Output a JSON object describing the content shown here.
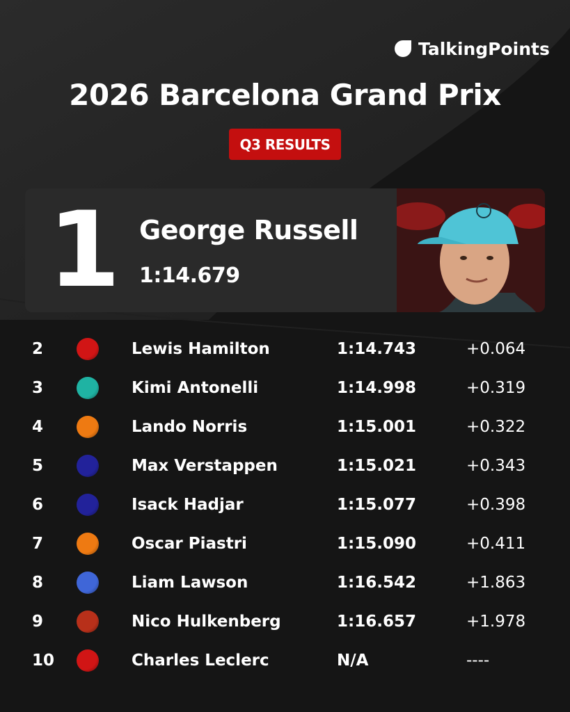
{
  "brand": "TalkingPoints",
  "title": "2026 Barcelona Grand Prix",
  "badge": "Q3 RESULTS",
  "winner": {
    "position": 1,
    "name": "George Russell",
    "time": "1:14.679"
  },
  "rows": [
    {
      "position": 2,
      "name": "Lewis Hamilton",
      "time": "1:14.743",
      "gap": "+0.064",
      "color": "#d11515"
    },
    {
      "position": 3,
      "name": "Kimi Antonelli",
      "time": "1:14.998",
      "gap": "+0.319",
      "color": "#1fb3a3"
    },
    {
      "position": 4,
      "name": "Lando Norris",
      "time": "1:15.001",
      "gap": "+0.322",
      "color": "#ee7a12"
    },
    {
      "position": 5,
      "name": "Max Verstappen",
      "time": "1:15.021",
      "gap": "+0.343",
      "color": "#22229a"
    },
    {
      "position": 6,
      "name": "Isack Hadjar",
      "time": "1:15.077",
      "gap": "+0.398",
      "color": "#22229a"
    },
    {
      "position": 7,
      "name": "Oscar Piastri",
      "time": "1:15.090",
      "gap": "+0.411",
      "color": "#ee7a12"
    },
    {
      "position": 8,
      "name": "Liam Lawson",
      "time": "1:16.542",
      "gap": "+1.863",
      "color": "#3f66d8"
    },
    {
      "position": 9,
      "name": "Nico Hulkenberg",
      "time": "1:16.657",
      "gap": "+1.978",
      "color": "#b8301a"
    },
    {
      "position": 10,
      "name": "Charles Leclerc",
      "time": "N/A",
      "gap": "----",
      "color": "#d11515"
    }
  ]
}
